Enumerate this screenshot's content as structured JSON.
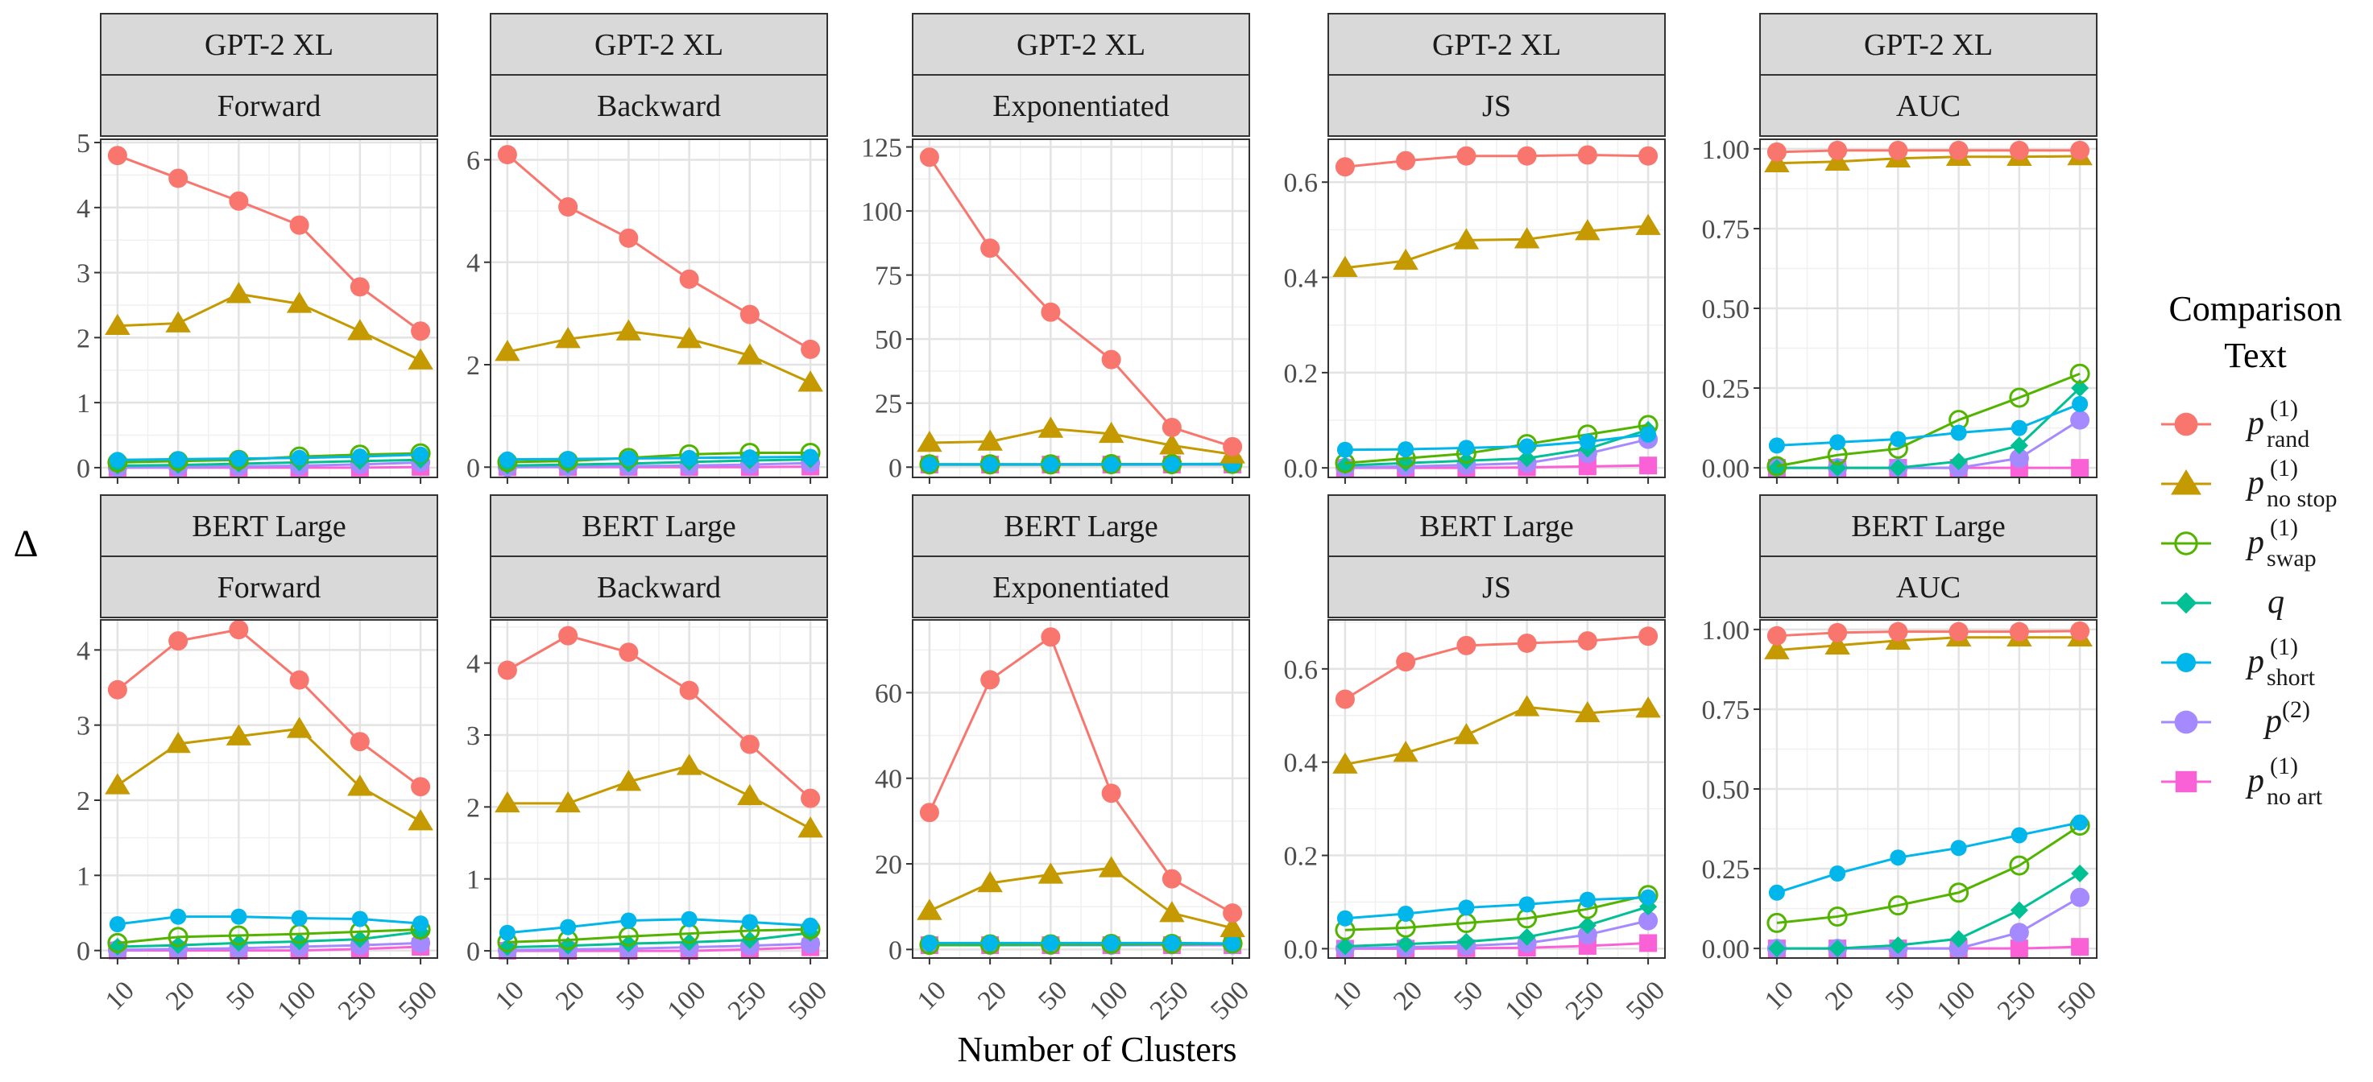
{
  "figure": {
    "ylabel": "Δ",
    "xlabel": "Number of Clusters",
    "legend_title": [
      "Comparison",
      "Text"
    ],
    "legend_position": "right"
  },
  "series_styles": [
    {
      "key": "p_rand",
      "base": "p",
      "sup": "(1)",
      "sub": "rand",
      "color": "#F8766D",
      "shape": "circle"
    },
    {
      "key": "p_no_stop",
      "base": "p",
      "sup": "(1)",
      "sub": "no stop",
      "color": "#C49A00",
      "shape": "triangle"
    },
    {
      "key": "p_swap",
      "base": "p",
      "sup": "(1)",
      "sub": "swap",
      "color": "#53B400",
      "shape": "open-circle"
    },
    {
      "key": "q",
      "base": "q",
      "sup": "",
      "sub": "",
      "color": "#00C094",
      "shape": "diamond"
    },
    {
      "key": "p_short",
      "base": "p",
      "sup": "(1)",
      "sub": "short",
      "color": "#00B6EB",
      "shape": "small-circle"
    },
    {
      "key": "p2",
      "base": "p",
      "sup": "(2)",
      "sub": "",
      "color": "#A58AFF",
      "shape": "circle"
    },
    {
      "key": "p_no_art",
      "base": "p",
      "sup": "(1)",
      "sub": "no art",
      "color": "#FB61D7",
      "shape": "square"
    }
  ],
  "chart_data": [
    {
      "type": "line",
      "model": "GPT-2 XL",
      "metric": "Forward",
      "categories": [
        "10",
        "20",
        "50",
        "100",
        "250",
        "500"
      ],
      "ylim": [
        -0.15,
        5.05
      ],
      "yticks": [
        0,
        1,
        2,
        3,
        4,
        5
      ],
      "ytick_labels": [
        "0",
        "1",
        "2",
        "3",
        "4",
        "5"
      ],
      "series": [
        {
          "name": "p_rand",
          "values": [
            4.8,
            4.45,
            4.1,
            3.73,
            2.78,
            2.1
          ]
        },
        {
          "name": "p_no_stop",
          "values": [
            2.18,
            2.22,
            2.67,
            2.52,
            2.1,
            1.65
          ]
        },
        {
          "name": "p_swap",
          "values": [
            0.08,
            0.1,
            0.12,
            0.17,
            0.2,
            0.22
          ]
        },
        {
          "name": "q",
          "values": [
            0.03,
            0.04,
            0.06,
            0.08,
            0.1,
            0.12
          ]
        },
        {
          "name": "p_short",
          "values": [
            0.12,
            0.13,
            0.14,
            0.15,
            0.17,
            0.2
          ]
        },
        {
          "name": "p2",
          "values": [
            0.0,
            0.01,
            0.02,
            0.03,
            0.05,
            0.08
          ]
        },
        {
          "name": "p_no_art",
          "values": [
            0.0,
            0.0,
            0.0,
            0.0,
            0.0,
            0.01
          ]
        }
      ]
    },
    {
      "type": "line",
      "model": "GPT-2 XL",
      "metric": "Backward",
      "categories": [
        "10",
        "20",
        "50",
        "100",
        "250",
        "500"
      ],
      "ylim": [
        -0.2,
        6.4
      ],
      "yticks": [
        0,
        2,
        4,
        6
      ],
      "ytick_labels": [
        "0",
        "2",
        "4",
        "6"
      ],
      "series": [
        {
          "name": "p_rand",
          "values": [
            6.1,
            5.08,
            4.47,
            3.67,
            2.98,
            2.3
          ]
        },
        {
          "name": "p_no_stop",
          "values": [
            2.25,
            2.5,
            2.65,
            2.5,
            2.18,
            1.65
          ]
        },
        {
          "name": "p_swap",
          "values": [
            0.1,
            0.12,
            0.18,
            0.25,
            0.28,
            0.28
          ]
        },
        {
          "name": "q",
          "values": [
            0.03,
            0.05,
            0.07,
            0.1,
            0.13,
            0.15
          ]
        },
        {
          "name": "p_short",
          "values": [
            0.15,
            0.16,
            0.17,
            0.18,
            0.19,
            0.2
          ]
        },
        {
          "name": "p2",
          "values": [
            0.0,
            0.01,
            0.02,
            0.03,
            0.05,
            0.08
          ]
        },
        {
          "name": "p_no_art",
          "values": [
            0.0,
            0.0,
            0.0,
            0.0,
            0.0,
            0.01
          ]
        }
      ]
    },
    {
      "type": "line",
      "model": "GPT-2 XL",
      "metric": "Exponentiated",
      "categories": [
        "10",
        "20",
        "50",
        "100",
        "250",
        "500"
      ],
      "ylim": [
        -4,
        128
      ],
      "yticks": [
        0,
        25,
        50,
        75,
        100,
        125
      ],
      "ytick_labels": [
        "0",
        "25",
        "50",
        "75",
        "100",
        "125"
      ],
      "series": [
        {
          "name": "p_rand",
          "values": [
            121,
            85.5,
            60.5,
            42,
            15.5,
            8
          ]
        },
        {
          "name": "p_no_stop",
          "values": [
            9.5,
            10,
            15,
            13,
            8.5,
            5
          ]
        },
        {
          "name": "p_swap",
          "values": [
            1.1,
            1.1,
            1.1,
            1.2,
            1.2,
            1.3
          ]
        },
        {
          "name": "q",
          "values": [
            1.0,
            1.0,
            1.0,
            1.0,
            1.1,
            1.1
          ]
        },
        {
          "name": "p_short",
          "values": [
            1.1,
            1.1,
            1.1,
            1.1,
            1.2,
            1.2
          ]
        },
        {
          "name": "p2",
          "values": [
            1.0,
            1.0,
            1.0,
            1.0,
            1.0,
            1.1
          ]
        },
        {
          "name": "p_no_art",
          "values": [
            1.0,
            1.0,
            1.0,
            1.0,
            1.0,
            1.0
          ]
        }
      ]
    },
    {
      "type": "line",
      "model": "GPT-2 XL",
      "metric": "JS",
      "categories": [
        "10",
        "20",
        "50",
        "100",
        "250",
        "500"
      ],
      "ylim": [
        -0.02,
        0.69
      ],
      "yticks": [
        0,
        0.2,
        0.4,
        0.6
      ],
      "ytick_labels": [
        "0.0",
        "0.2",
        "0.4",
        "0.6"
      ],
      "series": [
        {
          "name": "p_rand",
          "values": [
            0.632,
            0.645,
            0.655,
            0.655,
            0.657,
            0.655
          ]
        },
        {
          "name": "p_no_stop",
          "values": [
            0.42,
            0.435,
            0.478,
            0.48,
            0.497,
            0.508
          ]
        },
        {
          "name": "p_swap",
          "values": [
            0.01,
            0.02,
            0.03,
            0.05,
            0.07,
            0.09
          ]
        },
        {
          "name": "q",
          "values": [
            0.005,
            0.01,
            0.015,
            0.02,
            0.04,
            0.08
          ]
        },
        {
          "name": "p_short",
          "values": [
            0.038,
            0.039,
            0.042,
            0.045,
            0.055,
            0.07
          ]
        },
        {
          "name": "p2",
          "values": [
            0.001,
            0.003,
            0.006,
            0.01,
            0.03,
            0.06
          ]
        },
        {
          "name": "p_no_art",
          "values": [
            0.0,
            0.0,
            0.0,
            0.001,
            0.003,
            0.005
          ]
        }
      ]
    },
    {
      "type": "line",
      "model": "GPT-2 XL",
      "metric": "AUC",
      "categories": [
        "10",
        "20",
        "50",
        "100",
        "250",
        "500"
      ],
      "ylim": [
        -0.03,
        1.03
      ],
      "yticks": [
        0,
        0.25,
        0.5,
        0.75,
        1.0
      ],
      "ytick_labels": [
        "0.00",
        "0.25",
        "0.50",
        "0.75",
        "1.00"
      ],
      "series": [
        {
          "name": "p_rand",
          "values": [
            0.99,
            0.995,
            0.995,
            0.995,
            0.995,
            0.995
          ]
        },
        {
          "name": "p_no_stop",
          "values": [
            0.955,
            0.96,
            0.97,
            0.975,
            0.975,
            0.977
          ]
        },
        {
          "name": "p_swap",
          "values": [
            0.005,
            0.04,
            0.06,
            0.15,
            0.22,
            0.295
          ]
        },
        {
          "name": "q",
          "values": [
            0.0,
            0.0,
            0.0,
            0.02,
            0.07,
            0.25
          ]
        },
        {
          "name": "p_short",
          "values": [
            0.07,
            0.08,
            0.09,
            0.11,
            0.125,
            0.2
          ]
        },
        {
          "name": "p2",
          "values": [
            0.0,
            0.0,
            0.0,
            0.0,
            0.03,
            0.15
          ]
        },
        {
          "name": "p_no_art",
          "values": [
            0.0,
            0.0,
            0.0,
            0.0,
            0.0,
            0.0
          ]
        }
      ]
    },
    {
      "type": "line",
      "model": "BERT Large",
      "metric": "Forward",
      "categories": [
        "10",
        "20",
        "50",
        "100",
        "250",
        "500"
      ],
      "ylim": [
        -0.1,
        4.4
      ],
      "yticks": [
        0,
        1,
        2,
        3,
        4
      ],
      "ytick_labels": [
        "0",
        "1",
        "2",
        "3",
        "4"
      ],
      "series": [
        {
          "name": "p_rand",
          "values": [
            3.47,
            4.12,
            4.27,
            3.6,
            2.78,
            2.18
          ]
        },
        {
          "name": "p_no_stop",
          "values": [
            2.2,
            2.75,
            2.85,
            2.95,
            2.18,
            1.72
          ]
        },
        {
          "name": "p_swap",
          "values": [
            0.1,
            0.18,
            0.2,
            0.22,
            0.25,
            0.28
          ]
        },
        {
          "name": "q",
          "values": [
            0.05,
            0.07,
            0.1,
            0.12,
            0.15,
            0.25
          ]
        },
        {
          "name": "p_short",
          "values": [
            0.35,
            0.45,
            0.45,
            0.43,
            0.42,
            0.36
          ]
        },
        {
          "name": "p2",
          "values": [
            0.01,
            0.02,
            0.03,
            0.05,
            0.07,
            0.1
          ]
        },
        {
          "name": "p_no_art",
          "values": [
            0.0,
            0.0,
            0.0,
            0.0,
            0.02,
            0.05
          ]
        }
      ]
    },
    {
      "type": "line",
      "model": "BERT Large",
      "metric": "Backward",
      "categories": [
        "10",
        "20",
        "50",
        "100",
        "250",
        "500"
      ],
      "ylim": [
        -0.1,
        4.6
      ],
      "yticks": [
        0,
        1,
        2,
        3,
        4
      ],
      "ytick_labels": [
        "0",
        "1",
        "2",
        "3",
        "4"
      ],
      "series": [
        {
          "name": "p_rand",
          "values": [
            3.9,
            4.38,
            4.15,
            3.62,
            2.87,
            2.12
          ]
        },
        {
          "name": "p_no_stop",
          "values": [
            2.05,
            2.05,
            2.35,
            2.57,
            2.15,
            1.7
          ]
        },
        {
          "name": "p_swap",
          "values": [
            0.12,
            0.15,
            0.2,
            0.24,
            0.28,
            0.3
          ]
        },
        {
          "name": "q",
          "values": [
            0.05,
            0.07,
            0.1,
            0.12,
            0.15,
            0.25
          ]
        },
        {
          "name": "p_short",
          "values": [
            0.25,
            0.33,
            0.42,
            0.44,
            0.4,
            0.35
          ]
        },
        {
          "name": "p2",
          "values": [
            0.01,
            0.02,
            0.03,
            0.05,
            0.07,
            0.1
          ]
        },
        {
          "name": "p_no_art",
          "values": [
            0.0,
            0.0,
            0.0,
            0.0,
            0.02,
            0.05
          ]
        }
      ]
    },
    {
      "type": "line",
      "model": "BERT Large",
      "metric": "Exponentiated",
      "categories": [
        "10",
        "20",
        "50",
        "100",
        "250",
        "500"
      ],
      "ylim": [
        -2,
        77
      ],
      "yticks": [
        0,
        20,
        40,
        60
      ],
      "ytick_labels": [
        "0",
        "20",
        "40",
        "60"
      ],
      "series": [
        {
          "name": "p_rand",
          "values": [
            32,
            63,
            73,
            36.5,
            16.5,
            8.5
          ]
        },
        {
          "name": "p_no_stop",
          "values": [
            9,
            15.5,
            17.5,
            19,
            8.5,
            5
          ]
        },
        {
          "name": "p_swap",
          "values": [
            1.1,
            1.2,
            1.2,
            1.3,
            1.3,
            1.4
          ]
        },
        {
          "name": "q",
          "values": [
            1.0,
            1.0,
            1.1,
            1.1,
            1.2,
            1.3
          ]
        },
        {
          "name": "p_short",
          "values": [
            1.5,
            1.5,
            1.5,
            1.5,
            1.5,
            1.4
          ]
        },
        {
          "name": "p2",
          "values": [
            1.0,
            1.0,
            1.0,
            1.0,
            1.1,
            1.1
          ]
        },
        {
          "name": "p_no_art",
          "values": [
            1.0,
            1.0,
            1.0,
            1.0,
            1.0,
            1.0
          ]
        }
      ]
    },
    {
      "type": "line",
      "model": "BERT Large",
      "metric": "JS",
      "categories": [
        "10",
        "20",
        "50",
        "100",
        "250",
        "500"
      ],
      "ylim": [
        -0.02,
        0.705
      ],
      "yticks": [
        0,
        0.2,
        0.4,
        0.6
      ],
      "ytick_labels": [
        "0.0",
        "0.2",
        "0.4",
        "0.6"
      ],
      "series": [
        {
          "name": "p_rand",
          "values": [
            0.535,
            0.615,
            0.65,
            0.655,
            0.66,
            0.67
          ]
        },
        {
          "name": "p_no_stop",
          "values": [
            0.395,
            0.42,
            0.458,
            0.518,
            0.505,
            0.515
          ]
        },
        {
          "name": "p_swap",
          "values": [
            0.04,
            0.045,
            0.055,
            0.065,
            0.085,
            0.115
          ]
        },
        {
          "name": "q",
          "values": [
            0.005,
            0.01,
            0.015,
            0.025,
            0.05,
            0.09
          ]
        },
        {
          "name": "p_short",
          "values": [
            0.065,
            0.075,
            0.088,
            0.095,
            0.105,
            0.11
          ]
        },
        {
          "name": "p2",
          "values": [
            0.001,
            0.003,
            0.006,
            0.012,
            0.03,
            0.06
          ]
        },
        {
          "name": "p_no_art",
          "values": [
            0.0,
            0.0,
            0.001,
            0.002,
            0.006,
            0.012
          ]
        }
      ]
    },
    {
      "type": "line",
      "model": "BERT Large",
      "metric": "AUC",
      "categories": [
        "10",
        "20",
        "50",
        "100",
        "250",
        "500"
      ],
      "ylim": [
        -0.03,
        1.03
      ],
      "yticks": [
        0,
        0.25,
        0.5,
        0.75,
        1.0
      ],
      "ytick_labels": [
        "0.00",
        "0.25",
        "0.50",
        "0.75",
        "1.00"
      ],
      "series": [
        {
          "name": "p_rand",
          "values": [
            0.98,
            0.99,
            0.993,
            0.993,
            0.993,
            0.995
          ]
        },
        {
          "name": "p_no_stop",
          "values": [
            0.935,
            0.95,
            0.965,
            0.975,
            0.975,
            0.975
          ]
        },
        {
          "name": "p_swap",
          "values": [
            0.08,
            0.1,
            0.135,
            0.175,
            0.26,
            0.385
          ]
        },
        {
          "name": "q",
          "values": [
            0.0,
            0.0,
            0.01,
            0.03,
            0.12,
            0.235
          ]
        },
        {
          "name": "p_short",
          "values": [
            0.175,
            0.235,
            0.285,
            0.315,
            0.355,
            0.395
          ]
        },
        {
          "name": "p2",
          "values": [
            0.0,
            0.0,
            0.0,
            0.0,
            0.05,
            0.16
          ]
        },
        {
          "name": "p_no_art",
          "values": [
            0.0,
            0.0,
            0.0,
            0.0,
            0.0,
            0.005
          ]
        }
      ]
    }
  ]
}
